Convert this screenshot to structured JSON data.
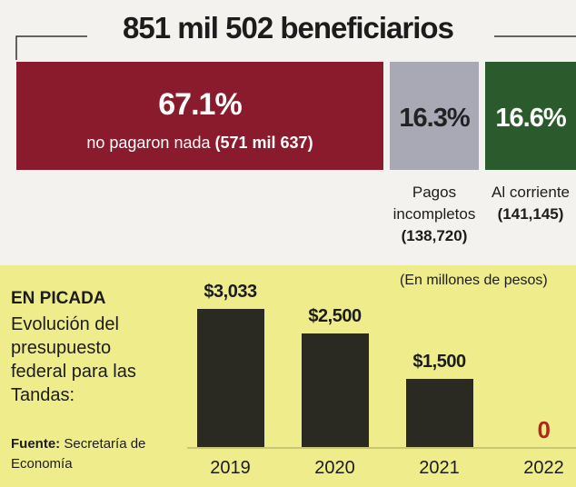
{
  "chart_data": [
    {
      "type": "stacked_bar",
      "orientation": "horizontal",
      "title": "851 mil 502 beneficiarios",
      "categories": [
        "no pagaron nada",
        "Pagos incompletos",
        "Al corriente"
      ],
      "counts": [
        "(571 mil 637)",
        "(138,720)",
        "(141,145)"
      ],
      "values": [
        67.1,
        16.3,
        16.6
      ],
      "value_labels": [
        "67.1%",
        "16.3%",
        "16.6%"
      ],
      "colors": [
        "#8a1b2c",
        "#a9a9b5",
        "#2b5b2c"
      ],
      "xlim": [
        0,
        100
      ]
    },
    {
      "type": "bar",
      "title": "EN PICADA",
      "subtitle": "Evolución del presupuesto federal para las Tandas:",
      "unit_note": "(En millones de pesos)",
      "source_label": "Fuente:",
      "source": "Secretaría de Economía",
      "categories": [
        "2019",
        "2020",
        "2021",
        "2022"
      ],
      "values": [
        3033,
        2500,
        1500,
        0
      ],
      "value_labels": [
        "$3,033",
        "$2,500",
        "$1,500",
        "0"
      ],
      "color": "#2b2a22",
      "zero_color": "#b3261e",
      "ylim": [
        0,
        3300
      ]
    }
  ]
}
